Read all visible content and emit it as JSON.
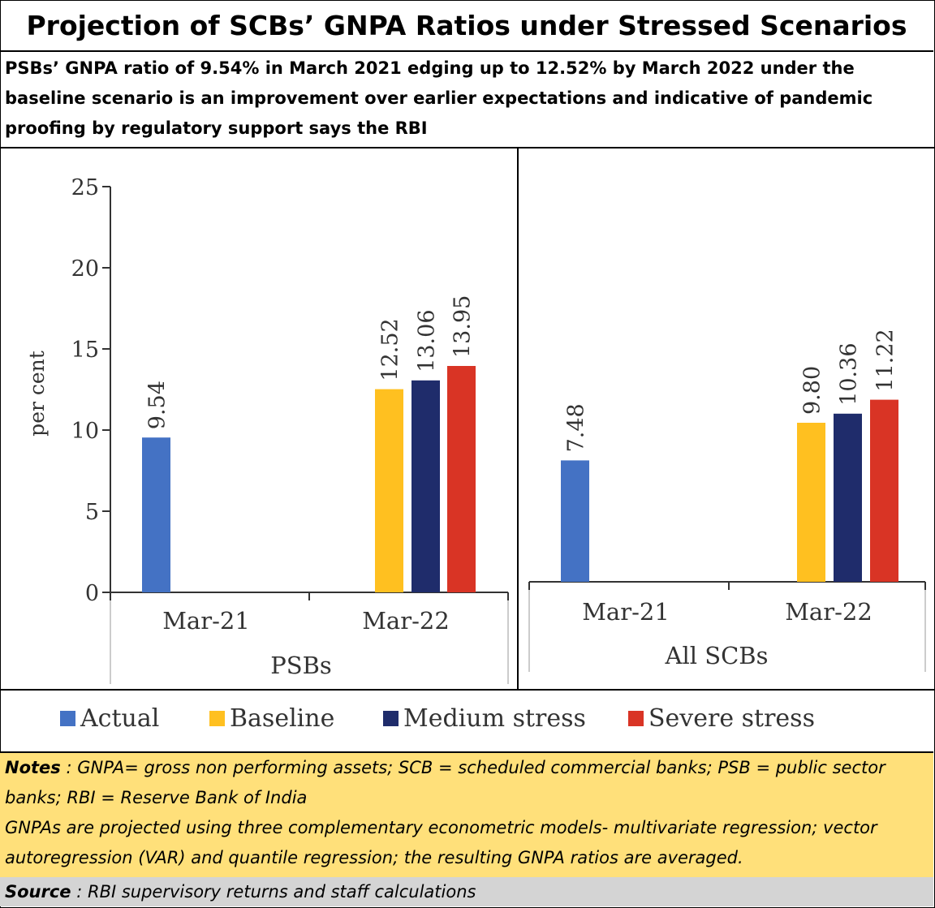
{
  "title": "Projection of SCBs’ GNPA Ratios under Stressed Scenarios",
  "subtitle": "PSBs’ GNPA ratio of 9.54% in March 2021 edging up to 12.52% by March 2022 under the baseline scenario is an improvement over earlier expectations and indicative of pandemic proofing by regulatory support says the RBI",
  "colors": {
    "actual": "#4472c4",
    "baseline": "#ffc020",
    "medium": "#1f2c6b",
    "severe": "#d93425",
    "notes_bg": "#ffe07a",
    "source_bg": "#d4d4d4"
  },
  "chart_data": [
    {
      "type": "bar",
      "title": "PSBs",
      "ylabel": "per cent",
      "ylim": [
        0,
        25
      ],
      "yticks": [
        "0",
        "5",
        "10",
        "15",
        "20",
        "25"
      ],
      "categories": [
        "Mar-21",
        "Mar-22"
      ],
      "series": [
        {
          "name": "Actual",
          "values": [
            9.54,
            null
          ],
          "labels": [
            "9.54",
            ""
          ]
        },
        {
          "name": "Baseline",
          "values": [
            null,
            12.52
          ],
          "labels": [
            "",
            "12.52"
          ]
        },
        {
          "name": "Medium stress",
          "values": [
            null,
            13.06
          ],
          "labels": [
            "",
            "13.06"
          ]
        },
        {
          "name": "Severe stress",
          "values": [
            null,
            13.95
          ],
          "labels": [
            "",
            "13.95"
          ]
        }
      ]
    },
    {
      "type": "bar",
      "title": "All SCBs",
      "ylim": [
        0,
        25
      ],
      "categories": [
        "Mar-21",
        "Mar-22"
      ],
      "series": [
        {
          "name": "Actual",
          "values": [
            7.48,
            null
          ],
          "labels": [
            "7.48",
            ""
          ]
        },
        {
          "name": "Baseline",
          "values": [
            null,
            9.8
          ],
          "labels": [
            "",
            "9.80"
          ]
        },
        {
          "name": "Medium stress",
          "values": [
            null,
            10.36
          ],
          "labels": [
            "",
            "10.36"
          ]
        },
        {
          "name": "Severe stress",
          "values": [
            null,
            11.22
          ],
          "labels": [
            "",
            "11.22"
          ]
        }
      ]
    }
  ],
  "legend": [
    {
      "label": "Actual",
      "color": "#4472c4"
    },
    {
      "label": "Baseline",
      "color": "#ffc020"
    },
    {
      "label": "Medium stress",
      "color": "#1f2c6b"
    },
    {
      "label": "Severe stress",
      "color": "#d93425"
    }
  ],
  "notes": {
    "heading": "Notes",
    "line1": " : GNPA= gross non performing assets; SCB = scheduled commercial banks; PSB = public sector banks; RBI = Reserve Bank of India",
    "line2": "GNPAs are projected using three complementary econometric models- multivariate regression; vector autoregression (VAR) and quantile regression; the resulting GNPA ratios are averaged."
  },
  "source": {
    "heading": "Source",
    "text": " : RBI supervisory returns and staff calculations"
  }
}
